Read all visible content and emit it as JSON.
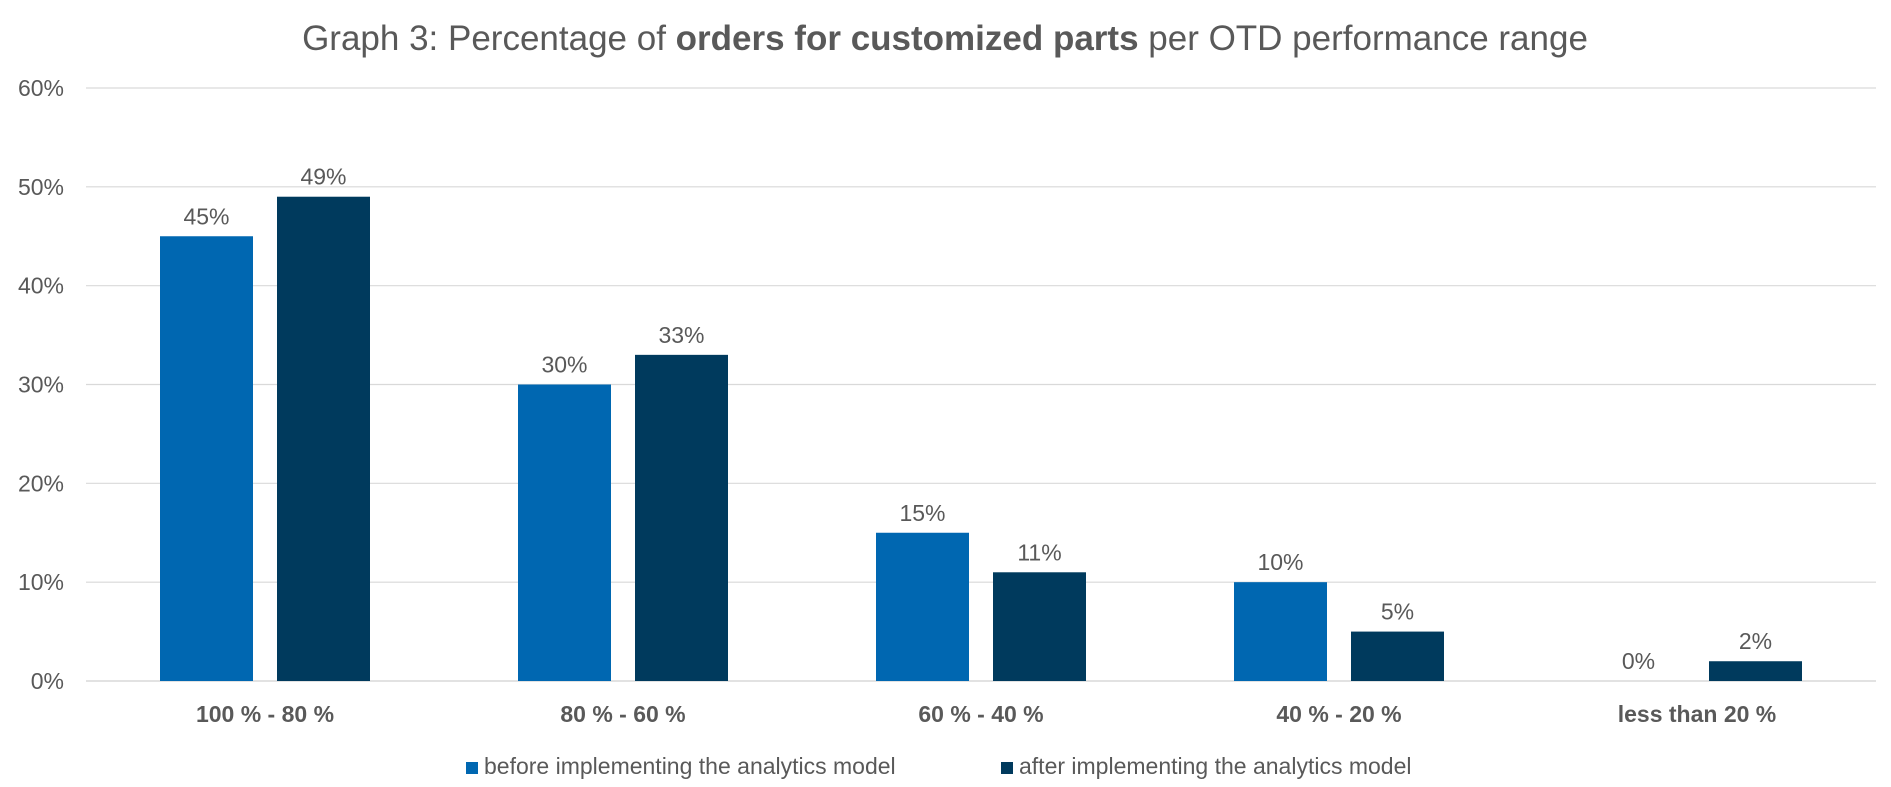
{
  "chart_data": {
    "type": "bar",
    "title_parts": [
      {
        "text": "Graph 3: Percentage of ",
        "bold": false
      },
      {
        "text": "orders for customized parts",
        "bold": true
      },
      {
        "text": " per OTD performance range",
        "bold": false
      }
    ],
    "categories": [
      "100 % - 80 %",
      "80 % - 60 %",
      "60 % - 40 %",
      "40 % - 20 %",
      "less than 20 %"
    ],
    "series": [
      {
        "name": "before implementing the analytics model",
        "values": [
          45,
          30,
          15,
          10,
          0
        ],
        "labels": [
          "45%",
          "30%",
          "15%",
          "10%",
          "0%"
        ],
        "color": "#0067b1"
      },
      {
        "name": "after implementing the analytics model",
        "values": [
          49,
          33,
          11,
          5,
          2
        ],
        "labels": [
          "49%",
          "33%",
          "11%",
          "5%",
          "2%"
        ],
        "color": "#003a5d"
      }
    ],
    "ylim": [
      0,
      60
    ],
    "yticks": [
      0,
      10,
      20,
      30,
      40,
      50,
      60
    ],
    "ytick_labels": [
      "0%",
      "10%",
      "20%",
      "30%",
      "40%",
      "50%",
      "60%"
    ],
    "grid": true,
    "legend_position": "bottom",
    "xlabel": "",
    "ylabel": ""
  }
}
